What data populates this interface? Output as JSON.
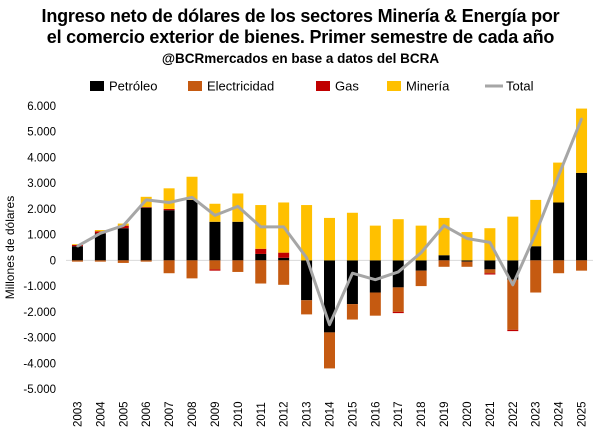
{
  "chart_data": {
    "type": "bar",
    "stacked": true,
    "title_line1": "Ingreso neto de dólares de los sectores Minería & Energía por",
    "title_line2": "el comercio exterior de bienes. Primer semestre de cada año",
    "subtitle": "@BCRmercados en base a datos del BCRA",
    "ylabel": "Millones de dólares",
    "ylim": [
      -5000,
      6000
    ],
    "yticks": [
      -5000,
      -4000,
      -3000,
      -2000,
      -1000,
      0,
      1000,
      2000,
      3000,
      4000,
      5000,
      6000
    ],
    "ytick_labels": [
      "-5.000",
      "-4.000",
      "-3.000",
      "-2.000",
      "-1.000",
      "0",
      "1.000",
      "2.000",
      "3.000",
      "4.000",
      "5.000",
      "6.000"
    ],
    "legend_position": "top",
    "categories": [
      "2003",
      "2004",
      "2005",
      "2006",
      "2007",
      "2008",
      "2009",
      "2010",
      "2011",
      "2012",
      "2013",
      "2014",
      "2015",
      "2016",
      "2017",
      "2018",
      "2019",
      "2020",
      "2021",
      "2022",
      "2023",
      "2024",
      "2025"
    ],
    "series": [
      {
        "name": "Petróleo",
        "color": "#000000",
        "kind": "bar",
        "values": [
          550,
          1050,
          1250,
          2050,
          1950,
          2350,
          1500,
          1500,
          250,
          100,
          -1550,
          -2800,
          -1700,
          -1250,
          -1050,
          -400,
          200,
          -50,
          -350,
          -750,
          550,
          2250,
          3400
        ]
      },
      {
        "name": "Electricidad",
        "color": "#c55a11",
        "kind": "bar",
        "values": [
          -50,
          -50,
          -100,
          -50,
          -500,
          -700,
          -350,
          -450,
          -900,
          -950,
          -550,
          -1400,
          -600,
          -900,
          -950,
          -600,
          -250,
          -200,
          -150,
          -1950,
          -1250,
          -500,
          -400
        ]
      },
      {
        "name": "Gas",
        "color": "#c00000",
        "kind": "bar",
        "values": [
          50,
          80,
          100,
          20,
          50,
          0,
          -50,
          0,
          200,
          200,
          0,
          0,
          0,
          0,
          -50,
          0,
          0,
          0,
          -50,
          -50,
          0,
          0,
          0
        ]
      },
      {
        "name": "Minería",
        "color": "#ffc000",
        "kind": "bar",
        "values": [
          30,
          50,
          80,
          400,
          800,
          900,
          700,
          1100,
          1700,
          1950,
          2150,
          1650,
          1850,
          1350,
          1600,
          1350,
          1450,
          1100,
          1250,
          1700,
          1800,
          1550,
          2500
        ]
      },
      {
        "name": "Total",
        "color": "#a6a6a6",
        "kind": "line",
        "values": [
          550,
          1050,
          1350,
          2350,
          2250,
          2450,
          1750,
          2100,
          1300,
          1300,
          100,
          -2500,
          -500,
          -750,
          -450,
          300,
          1350,
          850,
          700,
          -950,
          1050,
          3300,
          5500
        ]
      }
    ]
  }
}
